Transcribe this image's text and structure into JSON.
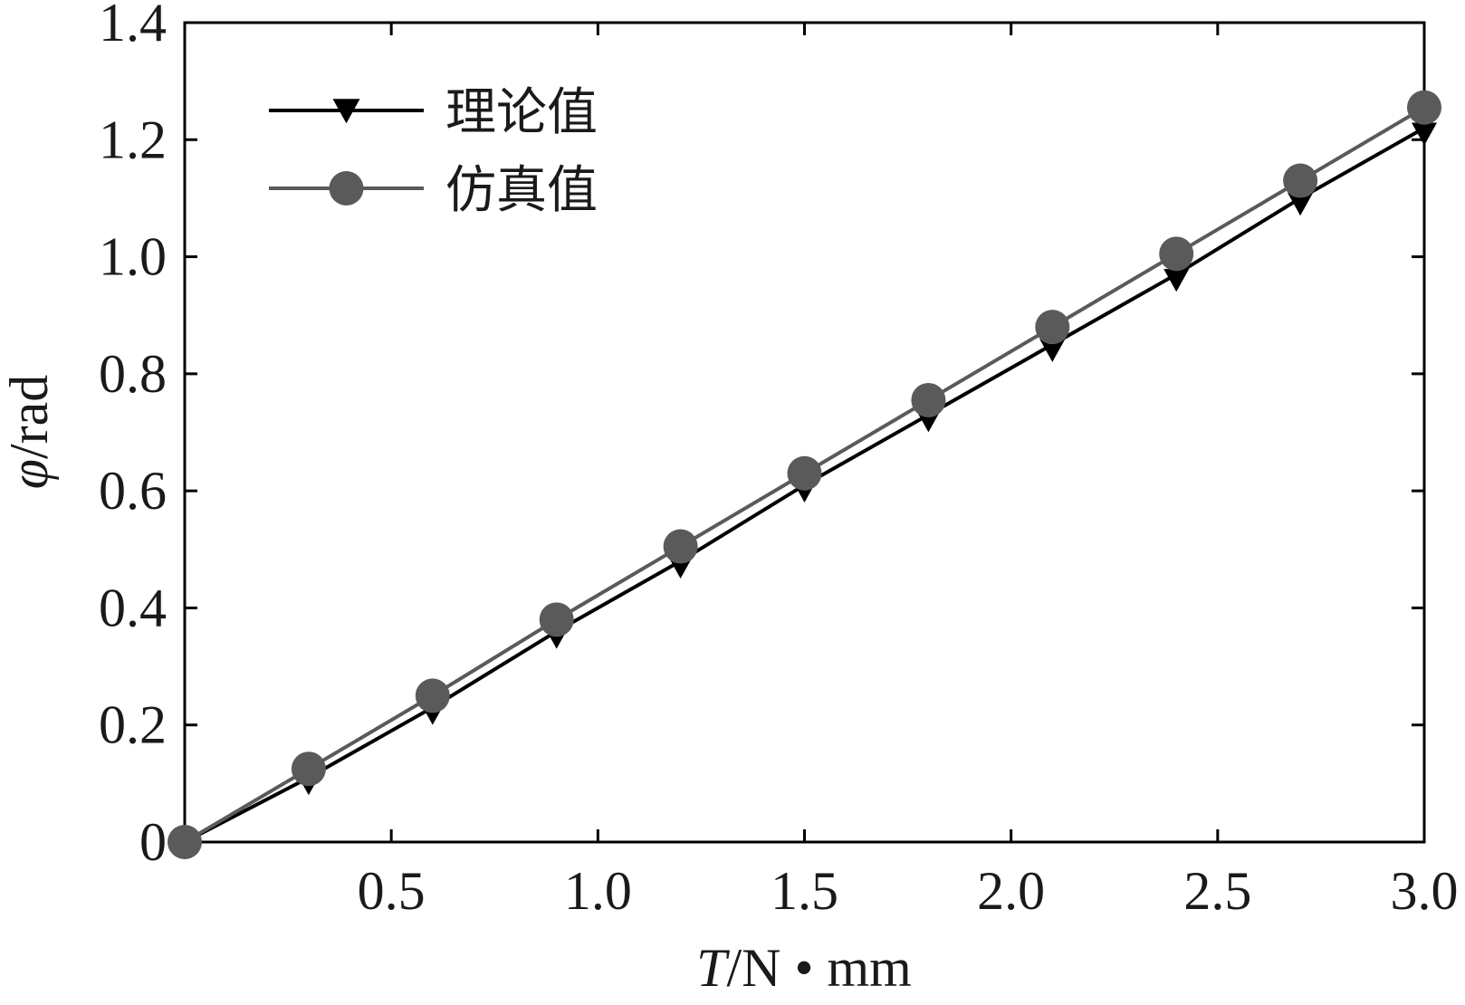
{
  "chart_data": {
    "type": "line",
    "xlabel": {
      "var": "T",
      "unit": "/N • mm"
    },
    "ylabel": {
      "var": "φ",
      "unit": "/rad"
    },
    "xlim": [
      0,
      3.0
    ],
    "ylim": [
      0,
      1.4
    ],
    "x_ticks": [
      0.5,
      1.0,
      1.5,
      2.0,
      2.5,
      3.0
    ],
    "x_tick_labels": [
      "0.5",
      "1.0",
      "1.5",
      "2.0",
      "2.5",
      "3.0"
    ],
    "y_ticks": [
      0,
      0.2,
      0.4,
      0.6,
      0.8,
      1.0,
      1.2,
      1.4
    ],
    "y_tick_labels": [
      "0",
      "0.2",
      "0.4",
      "0.6",
      "0.8",
      "1.0",
      "1.2",
      "1.4"
    ],
    "grid": false,
    "legend_position": "top-left",
    "x": [
      0,
      0.3,
      0.6,
      0.9,
      1.2,
      1.5,
      1.8,
      2.1,
      2.4,
      2.7,
      3.0
    ],
    "series": [
      {
        "name": "理论值",
        "marker": "triangle-down",
        "color": "#000000",
        "values": [
          0,
          0.11,
          0.23,
          0.36,
          0.48,
          0.61,
          0.73,
          0.85,
          0.97,
          1.1,
          1.22
        ]
      },
      {
        "name": "仿真值",
        "marker": "circle",
        "color": "#5a5a5a",
        "values": [
          0,
          0.125,
          0.25,
          0.38,
          0.505,
          0.63,
          0.755,
          0.88,
          1.005,
          1.13,
          1.255
        ]
      }
    ]
  }
}
